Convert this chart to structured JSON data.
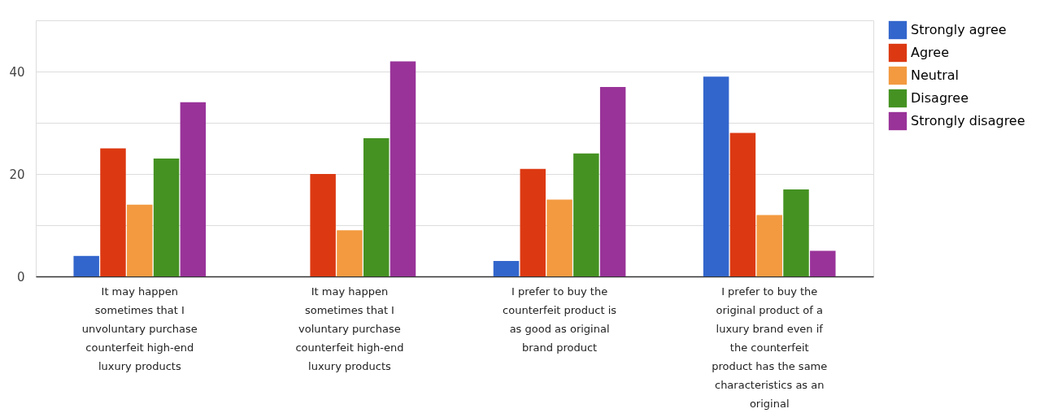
{
  "chart_data": {
    "type": "bar",
    "categories": [
      "It may happen sometimes that I unvoluntary purchase counterfeit high-end luxury products",
      "It may happen sometimes that I voluntary purchase counterfeit high-end luxury products",
      "I prefer to buy the counterfeit product is as good as original brand product",
      "I prefer to buy the original product of a luxury brand even if the counterfeit product has the same characteristics as an original"
    ],
    "series": [
      {
        "name": "Strongly agree",
        "color": "#3366cc",
        "values": [
          4,
          0,
          3,
          39
        ]
      },
      {
        "name": "Agree",
        "color": "#dc3912",
        "values": [
          25,
          20,
          21,
          28
        ]
      },
      {
        "name": "Neutral",
        "color": "#f39a40",
        "values": [
          14,
          9,
          15,
          12
        ]
      },
      {
        "name": "Disagree",
        "color": "#459222",
        "values": [
          23,
          27,
          24,
          17
        ]
      },
      {
        "name": "Strongly disagree",
        "color": "#993399",
        "values": [
          34,
          42,
          37,
          5
        ]
      }
    ],
    "ylim": [
      0,
      50
    ],
    "yticks": [
      0,
      {
        "value": 10,
        "label": null
      },
      20,
      {
        "value": 30,
        "label": null
      },
      40
    ],
    "grid": true,
    "legend": "top right"
  }
}
